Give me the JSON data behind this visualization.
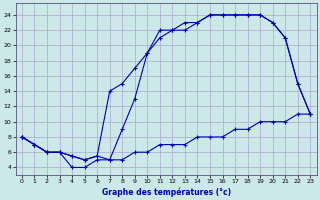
{
  "title": "Graphe des températures (°c)",
  "background_color": "#cde8e8",
  "grid_color": "#aaaacc",
  "line_color": "#0000bb",
  "xlim": [
    -0.5,
    23.5
  ],
  "ylim": [
    3.0,
    25.5
  ],
  "xticks": [
    0,
    1,
    2,
    3,
    4,
    5,
    6,
    7,
    8,
    9,
    10,
    11,
    12,
    13,
    14,
    15,
    16,
    17,
    18,
    19,
    20,
    21,
    22,
    23
  ],
  "yticks": [
    4,
    6,
    8,
    10,
    12,
    14,
    16,
    18,
    20,
    22,
    24
  ],
  "line_top_x": [
    0,
    1,
    2,
    3,
    4,
    5,
    6,
    7,
    8,
    9,
    10,
    11,
    12,
    13,
    14,
    15,
    16,
    17,
    18,
    19,
    20,
    21,
    22,
    23
  ],
  "line_top_y": [
    8,
    7,
    6,
    6,
    5.5,
    5,
    5.5,
    5,
    9,
    13,
    19,
    22,
    22,
    23,
    23,
    24,
    24,
    24,
    24,
    24,
    23,
    21,
    15,
    11
  ],
  "line_mid_x": [
    0,
    1,
    2,
    3,
    4,
    5,
    6,
    7,
    8,
    9,
    10,
    11,
    12,
    13,
    14,
    15,
    16,
    17,
    18,
    19,
    20,
    21,
    22,
    23
  ],
  "line_mid_y": [
    8,
    7,
    6,
    6,
    5.5,
    5,
    5.5,
    14,
    15,
    17,
    19,
    21,
    22,
    22,
    23,
    24,
    24,
    24,
    24,
    24,
    23,
    21,
    15,
    11
  ],
  "line_bot_x": [
    0,
    1,
    2,
    3,
    4,
    5,
    6,
    7,
    8,
    9,
    10,
    11,
    12,
    13,
    14,
    15,
    16,
    17,
    18,
    19,
    20,
    21,
    22,
    23
  ],
  "line_bot_y": [
    8,
    7,
    6,
    6,
    4,
    4,
    5,
    5,
    5,
    6,
    6,
    7,
    7,
    7,
    8,
    8,
    8,
    9,
    9,
    10,
    10,
    10,
    11,
    11
  ]
}
